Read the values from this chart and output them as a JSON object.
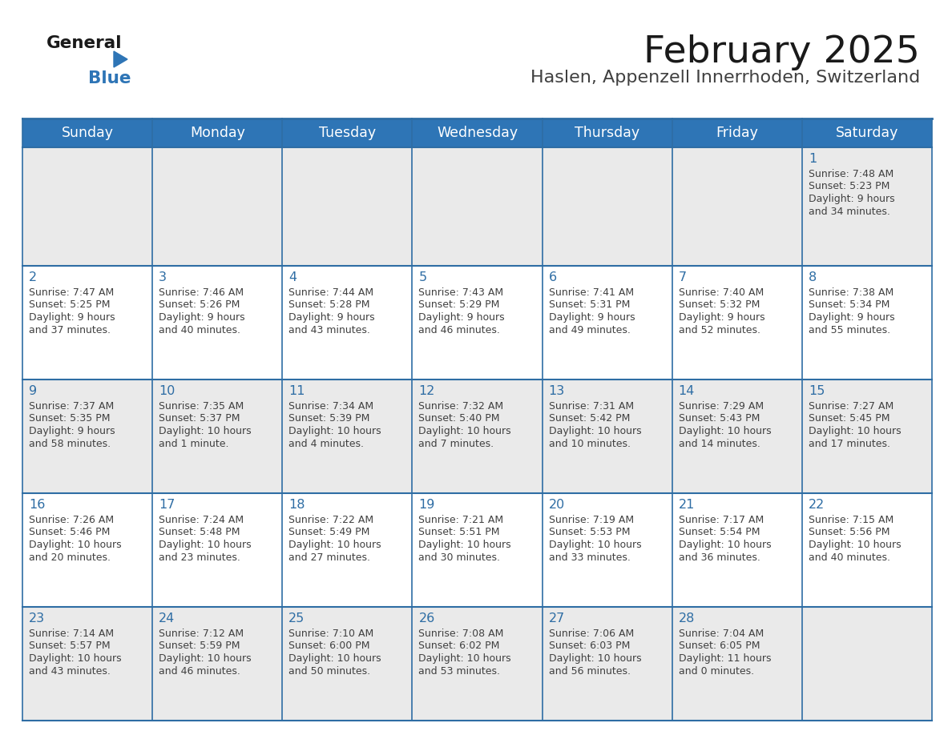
{
  "title": "February 2025",
  "subtitle": "Haslen, Appenzell Innerrhoden, Switzerland",
  "days_of_week": [
    "Sunday",
    "Monday",
    "Tuesday",
    "Wednesday",
    "Thursday",
    "Friday",
    "Saturday"
  ],
  "header_bg": "#2E75B6",
  "header_text": "#FFFFFF",
  "row0_bg": "#EAEAEA",
  "row1_bg": "#FFFFFF",
  "row2_bg": "#EAEAEA",
  "row3_bg": "#FFFFFF",
  "row4_bg": "#EAEAEA",
  "border_color": "#2E6DA4",
  "day_num_color": "#2E6DA4",
  "cell_text_color": "#404040",
  "title_color": "#1a1a1a",
  "subtitle_color": "#404040",
  "logo_general_color": "#1a1a1a",
  "logo_blue_color": "#2E75B6",
  "calendar_data": [
    [
      null,
      null,
      null,
      null,
      null,
      null,
      {
        "day": 1,
        "sunrise": "7:48 AM",
        "sunset": "5:23 PM",
        "daylight": "9 hours\nand 34 minutes."
      }
    ],
    [
      {
        "day": 2,
        "sunrise": "7:47 AM",
        "sunset": "5:25 PM",
        "daylight": "9 hours\nand 37 minutes."
      },
      {
        "day": 3,
        "sunrise": "7:46 AM",
        "sunset": "5:26 PM",
        "daylight": "9 hours\nand 40 minutes."
      },
      {
        "day": 4,
        "sunrise": "7:44 AM",
        "sunset": "5:28 PM",
        "daylight": "9 hours\nand 43 minutes."
      },
      {
        "day": 5,
        "sunrise": "7:43 AM",
        "sunset": "5:29 PM",
        "daylight": "9 hours\nand 46 minutes."
      },
      {
        "day": 6,
        "sunrise": "7:41 AM",
        "sunset": "5:31 PM",
        "daylight": "9 hours\nand 49 minutes."
      },
      {
        "day": 7,
        "sunrise": "7:40 AM",
        "sunset": "5:32 PM",
        "daylight": "9 hours\nand 52 minutes."
      },
      {
        "day": 8,
        "sunrise": "7:38 AM",
        "sunset": "5:34 PM",
        "daylight": "9 hours\nand 55 minutes."
      }
    ],
    [
      {
        "day": 9,
        "sunrise": "7:37 AM",
        "sunset": "5:35 PM",
        "daylight": "9 hours\nand 58 minutes."
      },
      {
        "day": 10,
        "sunrise": "7:35 AM",
        "sunset": "5:37 PM",
        "daylight": "10 hours\nand 1 minute."
      },
      {
        "day": 11,
        "sunrise": "7:34 AM",
        "sunset": "5:39 PM",
        "daylight": "10 hours\nand 4 minutes."
      },
      {
        "day": 12,
        "sunrise": "7:32 AM",
        "sunset": "5:40 PM",
        "daylight": "10 hours\nand 7 minutes."
      },
      {
        "day": 13,
        "sunrise": "7:31 AM",
        "sunset": "5:42 PM",
        "daylight": "10 hours\nand 10 minutes."
      },
      {
        "day": 14,
        "sunrise": "7:29 AM",
        "sunset": "5:43 PM",
        "daylight": "10 hours\nand 14 minutes."
      },
      {
        "day": 15,
        "sunrise": "7:27 AM",
        "sunset": "5:45 PM",
        "daylight": "10 hours\nand 17 minutes."
      }
    ],
    [
      {
        "day": 16,
        "sunrise": "7:26 AM",
        "sunset": "5:46 PM",
        "daylight": "10 hours\nand 20 minutes."
      },
      {
        "day": 17,
        "sunrise": "7:24 AM",
        "sunset": "5:48 PM",
        "daylight": "10 hours\nand 23 minutes."
      },
      {
        "day": 18,
        "sunrise": "7:22 AM",
        "sunset": "5:49 PM",
        "daylight": "10 hours\nand 27 minutes."
      },
      {
        "day": 19,
        "sunrise": "7:21 AM",
        "sunset": "5:51 PM",
        "daylight": "10 hours\nand 30 minutes."
      },
      {
        "day": 20,
        "sunrise": "7:19 AM",
        "sunset": "5:53 PM",
        "daylight": "10 hours\nand 33 minutes."
      },
      {
        "day": 21,
        "sunrise": "7:17 AM",
        "sunset": "5:54 PM",
        "daylight": "10 hours\nand 36 minutes."
      },
      {
        "day": 22,
        "sunrise": "7:15 AM",
        "sunset": "5:56 PM",
        "daylight": "10 hours\nand 40 minutes."
      }
    ],
    [
      {
        "day": 23,
        "sunrise": "7:14 AM",
        "sunset": "5:57 PM",
        "daylight": "10 hours\nand 43 minutes."
      },
      {
        "day": 24,
        "sunrise": "7:12 AM",
        "sunset": "5:59 PM",
        "daylight": "10 hours\nand 46 minutes."
      },
      {
        "day": 25,
        "sunrise": "7:10 AM",
        "sunset": "6:00 PM",
        "daylight": "10 hours\nand 50 minutes."
      },
      {
        "day": 26,
        "sunrise": "7:08 AM",
        "sunset": "6:02 PM",
        "daylight": "10 hours\nand 53 minutes."
      },
      {
        "day": 27,
        "sunrise": "7:06 AM",
        "sunset": "6:03 PM",
        "daylight": "10 hours\nand 56 minutes."
      },
      {
        "day": 28,
        "sunrise": "7:04 AM",
        "sunset": "6:05 PM",
        "daylight": "11 hours\nand 0 minutes."
      },
      null
    ]
  ],
  "fig_width": 11.88,
  "fig_height": 9.18
}
